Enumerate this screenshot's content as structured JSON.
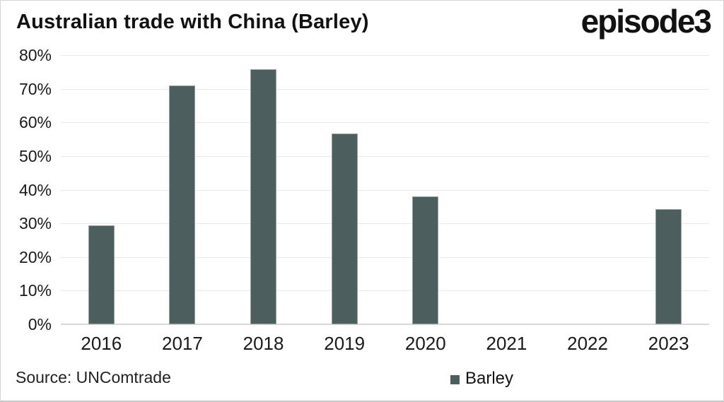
{
  "header": {
    "title": "Australian trade with China (Barley)",
    "logo": "episode3"
  },
  "footer": {
    "source": "Source: UNComtrade"
  },
  "legend": {
    "label": "Barley"
  },
  "colors": {
    "bar": "#4d5e5f",
    "bar_border": "#93a2a2",
    "gridline": "#e9e9e9",
    "axis_line": "#d9d9d9",
    "text": "#1a1a1a",
    "background": "#ffffff"
  },
  "chart_data": {
    "type": "bar",
    "title": "Australian trade with China (Barley)",
    "categories": [
      "2016",
      "2017",
      "2018",
      "2019",
      "2020",
      "2021",
      "2022",
      "2023"
    ],
    "series": [
      {
        "name": "Barley",
        "values": [
          29.3,
          70.9,
          75.8,
          56.6,
          38.1,
          0,
          0,
          34.3
        ]
      }
    ],
    "xlabel": "",
    "ylabel": "",
    "ylim": [
      0,
      80
    ],
    "ytick_step": 10,
    "ytick_labels": [
      "0%",
      "10%",
      "20%",
      "30%",
      "40%",
      "50%",
      "60%",
      "70%",
      "80%"
    ],
    "grid": true,
    "legend_position": "bottom",
    "source": "Source: UNComtrade"
  }
}
